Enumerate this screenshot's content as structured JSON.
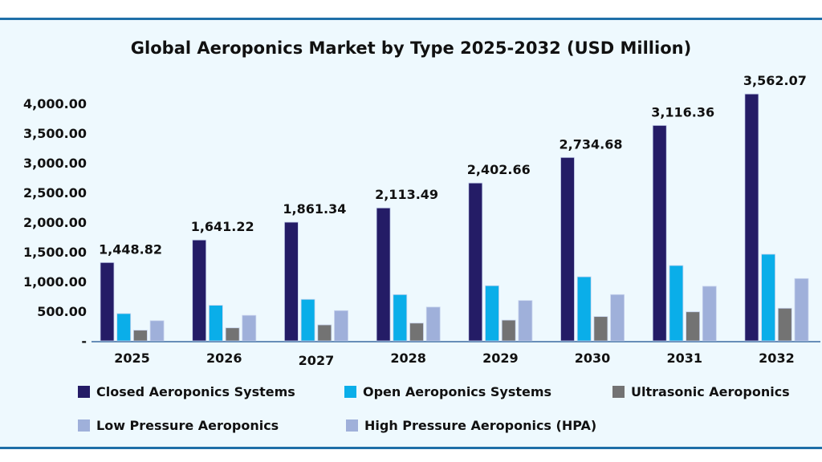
{
  "chart_data": {
    "type": "bar",
    "title": "Global Aeroponics Market by Type 2025-2032 (USD Million)",
    "categories": [
      "2025",
      "2026",
      "2027",
      "2028",
      "2029",
      "2030",
      "2031",
      "2032"
    ],
    "ylim": [
      0,
      4000
    ],
    "yticks": [
      0,
      500,
      1000,
      1500,
      2000,
      2500,
      3000,
      3500,
      4000
    ],
    "ytick_labels": [
      "-",
      "500.00",
      "1,000.00",
      "1,500.00",
      "2,000.00",
      "2,500.00",
      "3,000.00",
      "3,500.00",
      "4,000.00"
    ],
    "grid": false,
    "legend_placement": "bottom",
    "series": [
      {
        "name": "Closed Aeroponics Systems",
        "color": "#241c66",
        "values": [
          1320,
          1700,
          2000,
          2240,
          2660,
          3090,
          3630,
          4160
        ]
      },
      {
        "name": "Open Aeroponics Systems",
        "color": "#0aaee9",
        "values": [
          460,
          600,
          700,
          780,
          930,
          1080,
          1270,
          1460
        ]
      },
      {
        "name": "Ultrasonic Aeroponics",
        "color": "#737373",
        "values": [
          180,
          220,
          270,
          300,
          350,
          410,
          490,
          550
        ]
      },
      {
        "name": "Low Pressure Aeroponics",
        "color": "#9fb0da",
        "values": [
          340,
          430,
          510,
          570,
          680,
          780,
          920,
          1050
        ]
      }
    ],
    "extra_legend": [
      {
        "name": "High Pressure Aeroponics (HPA)",
        "color": "#9fb0da"
      }
    ],
    "data_labels": [
      "1,448.82",
      "1,641.22",
      "1,861.34",
      "2,113.49",
      "2,402.66",
      "2,734.68",
      "3,116.36",
      "3,562.07"
    ]
  }
}
